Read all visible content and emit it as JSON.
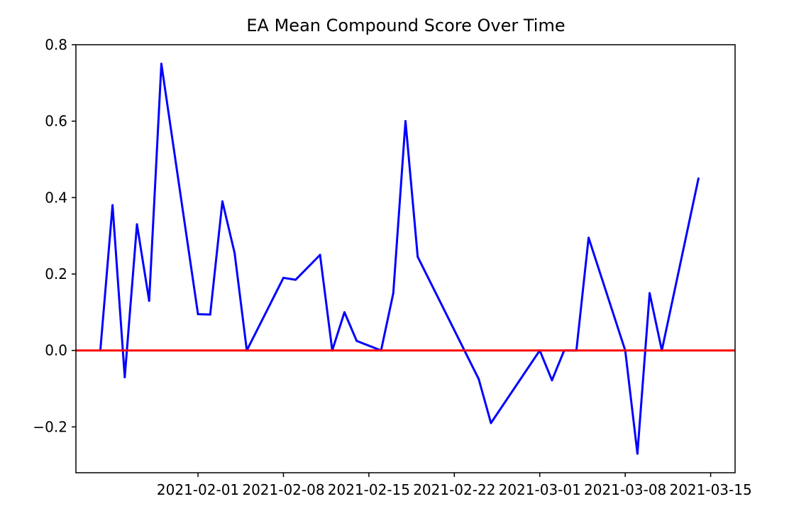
{
  "chart_data": {
    "type": "line",
    "title": "EA Mean Compound Score Over Time",
    "xlabel": "",
    "ylabel": "",
    "x_ticks": [
      "2021-02-01",
      "2021-02-08",
      "2021-02-15",
      "2021-02-22",
      "2021-03-01",
      "2021-03-08",
      "2021-03-15"
    ],
    "y_ticks": [
      "−0.2",
      "0.0",
      "0.2",
      "0.4",
      "0.6",
      "0.8"
    ],
    "xlim": [
      "2021-01-22",
      "2021-03-17"
    ],
    "ylim": [
      -0.32,
      0.8
    ],
    "grid": false,
    "reference_line": {
      "y": 0.0,
      "color": "#ff0000"
    },
    "series": [
      {
        "color": "#0000ff",
        "points": [
          {
            "x": "2021-01-24",
            "y": 0.0
          },
          {
            "x": "2021-01-25",
            "y": 0.38
          },
          {
            "x": "2021-01-26",
            "y": -0.07
          },
          {
            "x": "2021-01-27",
            "y": 0.33
          },
          {
            "x": "2021-01-28",
            "y": 0.13
          },
          {
            "x": "2021-01-29",
            "y": 0.75
          },
          {
            "x": "2021-02-01",
            "y": 0.095
          },
          {
            "x": "2021-02-02",
            "y": 0.094
          },
          {
            "x": "2021-02-03",
            "y": 0.39
          },
          {
            "x": "2021-02-04",
            "y": 0.255
          },
          {
            "x": "2021-02-05",
            "y": 0.0
          },
          {
            "x": "2021-02-08",
            "y": 0.19
          },
          {
            "x": "2021-02-09",
            "y": 0.185
          },
          {
            "x": "2021-02-11",
            "y": 0.25
          },
          {
            "x": "2021-02-12",
            "y": 0.0
          },
          {
            "x": "2021-02-13",
            "y": 0.1
          },
          {
            "x": "2021-02-14",
            "y": 0.025
          },
          {
            "x": "2021-02-16",
            "y": 0.0
          },
          {
            "x": "2021-02-17",
            "y": 0.15
          },
          {
            "x": "2021-02-18",
            "y": 0.6
          },
          {
            "x": "2021-02-19",
            "y": 0.245
          },
          {
            "x": "2021-02-24",
            "y": -0.075
          },
          {
            "x": "2021-02-25",
            "y": -0.19
          },
          {
            "x": "2021-03-01",
            "y": 0.0
          },
          {
            "x": "2021-03-02",
            "y": -0.078
          },
          {
            "x": "2021-03-03",
            "y": 0.0
          },
          {
            "x": "2021-03-04",
            "y": 0.0
          },
          {
            "x": "2021-03-05",
            "y": 0.295
          },
          {
            "x": "2021-03-08",
            "y": 0.0
          },
          {
            "x": "2021-03-09",
            "y": -0.27
          },
          {
            "x": "2021-03-10",
            "y": 0.15
          },
          {
            "x": "2021-03-11",
            "y": 0.0
          },
          {
            "x": "2021-03-14",
            "y": 0.45
          }
        ]
      }
    ]
  }
}
